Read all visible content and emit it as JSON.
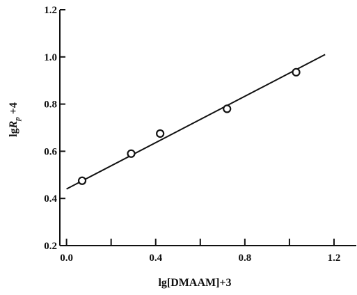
{
  "chart_data": {
    "type": "scatter",
    "xlabel": "lg[DMAAM]+3",
    "ylabel": "lgRp+4",
    "xlim": [
      -0.03,
      1.3
    ],
    "ylim": [
      0.2,
      1.2
    ],
    "x_ticks": [
      0.0,
      0.4,
      0.8,
      1.2
    ],
    "x_tick_labels": [
      "0.0",
      "0.4",
      "0.8",
      "1.2"
    ],
    "x_minor_ticks": [
      0.2,
      0.6,
      1.0
    ],
    "y_ticks": [
      0.2,
      0.4,
      0.6,
      0.8,
      1.0,
      1.2
    ],
    "y_tick_labels": [
      "0.2",
      "0.4",
      "0.6",
      "0.8",
      "1.0",
      "1.2"
    ],
    "grid": false,
    "points": [
      {
        "x": 0.07,
        "y": 0.475
      },
      {
        "x": 0.29,
        "y": 0.59
      },
      {
        "x": 0.42,
        "y": 0.675
      },
      {
        "x": 0.72,
        "y": 0.78
      },
      {
        "x": 1.03,
        "y": 0.935
      }
    ],
    "fit_line": {
      "x": [
        0.0,
        1.16
      ],
      "y": [
        0.44,
        1.01
      ]
    }
  }
}
